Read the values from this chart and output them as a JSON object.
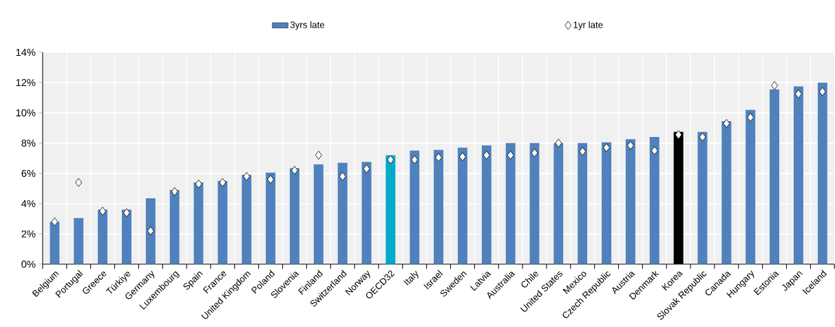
{
  "chart_data": {
    "type": "bar",
    "categories": [
      "Belgium",
      "Portugal",
      "Greece",
      "Türkiye",
      "Germany",
      "Luxembourg",
      "Spain",
      "France",
      "United Kingdom",
      "Poland",
      "Slovenia",
      "Finland",
      "Switzerland",
      "Norway",
      "OECD32",
      "Italy",
      "Israel",
      "Sweden",
      "Latvia",
      "Australia",
      "Chile",
      "United States",
      "Mexico",
      "Czech Republic",
      "Austria",
      "Denmark",
      "Korea",
      "Slovak Republic",
      "Canada",
      "Hungary",
      "Estonia",
      "Japan",
      "Iceland"
    ],
    "series": [
      {
        "name": "3yrs late",
        "color": "#4f81bd",
        "colors": [
          "#4f81bd",
          "#4f81bd",
          "#4f81bd",
          "#4f81bd",
          "#4f81bd",
          "#4f81bd",
          "#4f81bd",
          "#4f81bd",
          "#4f81bd",
          "#4f81bd",
          "#4f81bd",
          "#4f81bd",
          "#4f81bd",
          "#4f81bd",
          "#00aacc",
          "#4f81bd",
          "#4f81bd",
          "#4f81bd",
          "#4f81bd",
          "#4f81bd",
          "#4f81bd",
          "#4f81bd",
          "#4f81bd",
          "#4f81bd",
          "#4f81bd",
          "#4f81bd",
          "#000000",
          "#4f81bd",
          "#4f81bd",
          "#4f81bd",
          "#4f81bd",
          "#4f81bd",
          "#4f81bd"
        ],
        "values": [
          2.8,
          3.05,
          3.6,
          3.6,
          4.35,
          4.9,
          5.4,
          5.5,
          5.9,
          6.05,
          6.35,
          6.6,
          6.7,
          6.75,
          7.2,
          7.5,
          7.55,
          7.7,
          7.85,
          8.0,
          8.0,
          8.0,
          8.0,
          8.05,
          8.25,
          8.4,
          8.75,
          8.75,
          9.45,
          10.2,
          11.55,
          11.75,
          12.0
        ]
      },
      {
        "name": "1yr late",
        "type": "scatter",
        "color": "#ffffff",
        "marker": "diamond",
        "values": [
          2.8,
          5.4,
          3.5,
          3.4,
          2.2,
          4.8,
          5.3,
          5.4,
          5.8,
          5.6,
          6.2,
          7.2,
          5.8,
          6.3,
          6.9,
          6.9,
          7.05,
          7.1,
          7.2,
          7.2,
          7.35,
          8.0,
          7.45,
          7.7,
          7.85,
          7.5,
          8.55,
          8.4,
          9.3,
          9.7,
          11.8,
          11.25,
          11.4
        ]
      }
    ],
    "ylim": [
      0,
      14
    ],
    "yticks": [
      {
        "value": 0,
        "label": "0%"
      },
      {
        "value": 2,
        "label": "2%"
      },
      {
        "value": 4,
        "label": "4%"
      },
      {
        "value": 6,
        "label": "6%"
      },
      {
        "value": 8,
        "label": "8%"
      },
      {
        "value": 10,
        "label": "10%"
      },
      {
        "value": 12,
        "label": "12%"
      },
      {
        "value": 14,
        "label": "14%"
      }
    ],
    "grid": true,
    "legend": "top"
  }
}
